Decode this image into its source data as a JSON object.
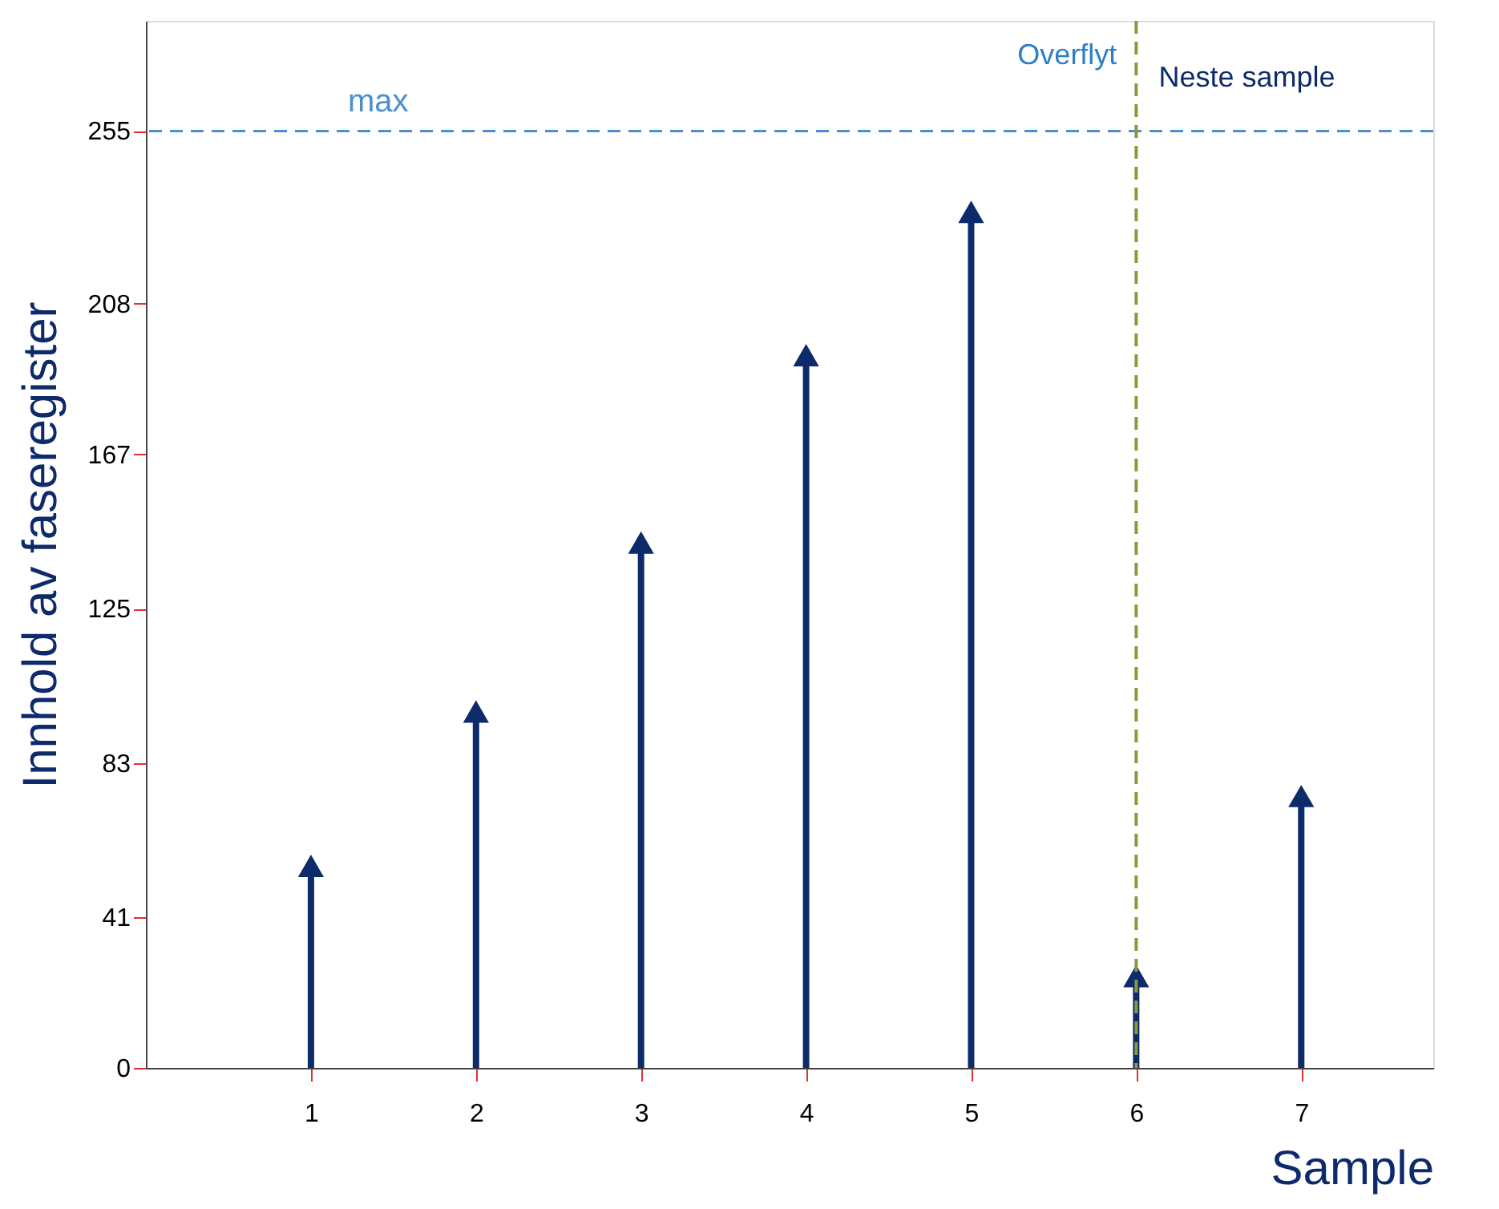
{
  "chart_data": {
    "type": "lollipop",
    "xlabel": "Sample",
    "ylabel": "Innhold av faseregister",
    "x": [
      1,
      2,
      3,
      4,
      5,
      6,
      7
    ],
    "series": [
      {
        "color": "#0d2a6b",
        "values": [
          55,
          97,
          143,
          194,
          233,
          25,
          74
        ]
      }
    ],
    "marker": "triangle",
    "xlim": [
      0,
      7.8
    ],
    "ylim": [
      0,
      285
    ],
    "xticks": [
      1,
      2,
      3,
      4,
      5,
      6,
      7
    ],
    "yticks": [
      0,
      41,
      83,
      125,
      167,
      208,
      255
    ],
    "grid": false,
    "ref_lines": [
      {
        "axis": "y",
        "value": 255,
        "label": "max",
        "color": "#4a90d0",
        "line_style": "dashed"
      },
      {
        "axis": "x",
        "value": 6,
        "color": "#8a9a3a",
        "line_style": "dashed"
      }
    ],
    "annotations": [
      "Overflyt",
      "Neste sample"
    ]
  }
}
